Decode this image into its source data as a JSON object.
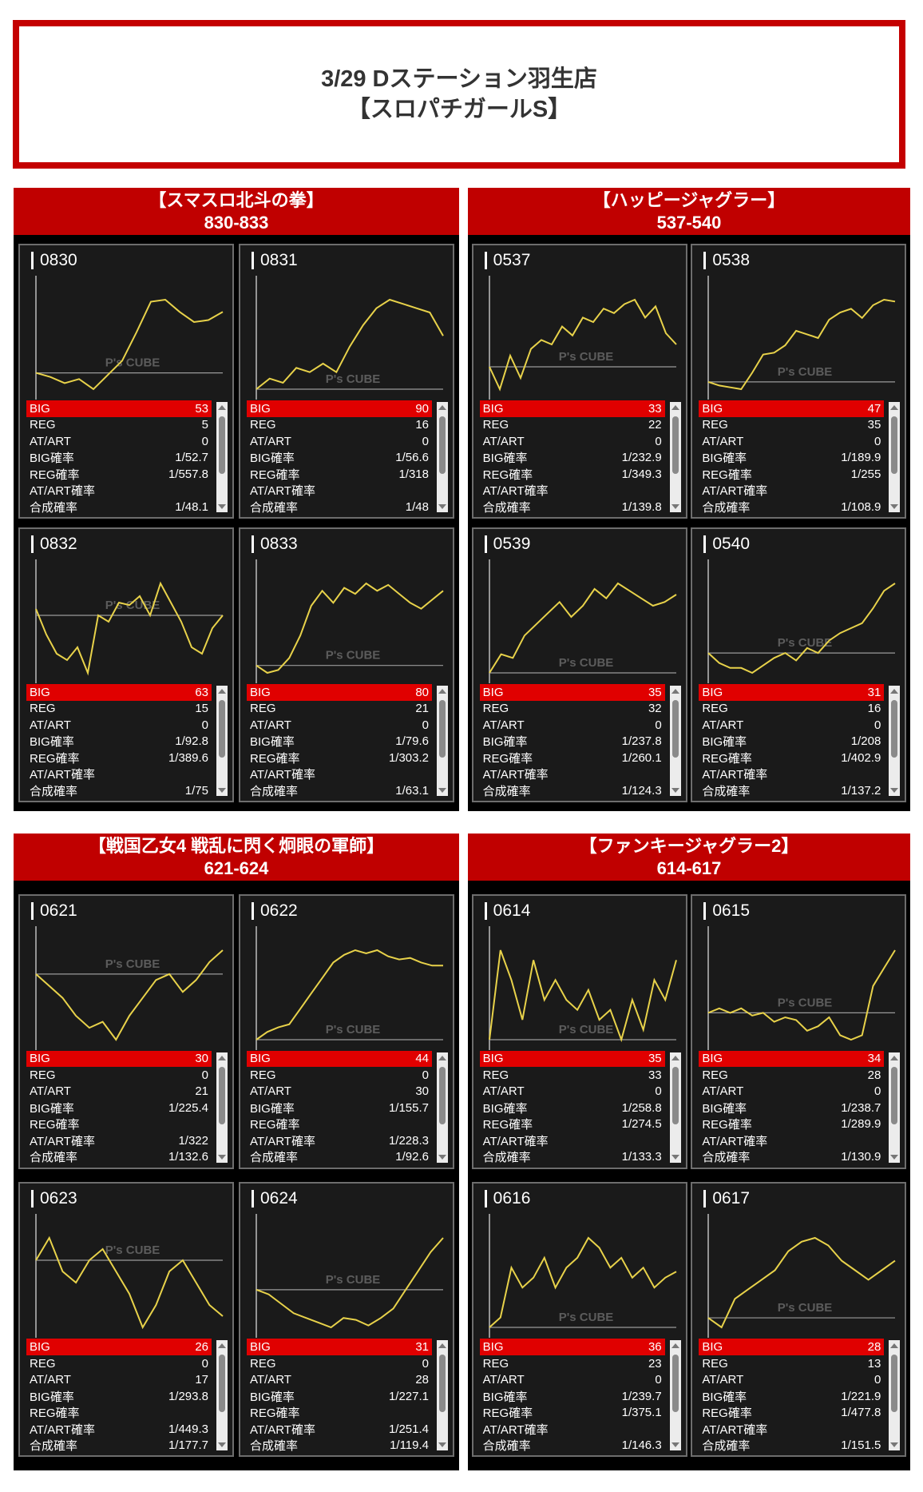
{
  "header": {
    "line1": "3/29 Dステーション羽生店",
    "line2": "【スロパチガールS】"
  },
  "stat_labels": [
    "BIG",
    "REG",
    "AT/ART",
    "BIG確率",
    "REG確率",
    "AT/ART確率",
    "合成確率"
  ],
  "watermark": "P's CUBE",
  "colors": {
    "accent": "#c00000",
    "big_row": "#e00000",
    "line": "#e8d24a"
  },
  "groups": [
    {
      "title": "【スマスロ北斗の拳】",
      "range": "830-833",
      "machines": [
        {
          "num": "0830",
          "stats": [
            "53",
            "5",
            "0",
            "1/52.7",
            "1/557.8",
            "",
            "1/48.1"
          ]
        },
        {
          "num": "0831",
          "stats": [
            "90",
            "16",
            "0",
            "1/56.6",
            "1/318",
            "",
            "1/48"
          ]
        },
        {
          "num": "0832",
          "stats": [
            "63",
            "15",
            "0",
            "1/92.8",
            "1/389.6",
            "",
            "1/75"
          ]
        },
        {
          "num": "0833",
          "stats": [
            "80",
            "21",
            "0",
            "1/79.6",
            "1/303.2",
            "",
            "1/63.1"
          ]
        }
      ]
    },
    {
      "title": "【ハッピージャグラー】",
      "range": "537-540",
      "machines": [
        {
          "num": "0537",
          "stats": [
            "33",
            "22",
            "0",
            "1/232.9",
            "1/349.3",
            "",
            "1/139.8"
          ]
        },
        {
          "num": "0538",
          "stats": [
            "47",
            "35",
            "0",
            "1/189.9",
            "1/255",
            "",
            "1/108.9"
          ]
        },
        {
          "num": "0539",
          "stats": [
            "35",
            "32",
            "0",
            "1/237.8",
            "1/260.1",
            "",
            "1/124.3"
          ]
        },
        {
          "num": "0540",
          "stats": [
            "31",
            "16",
            "0",
            "1/208",
            "1/402.9",
            "",
            "1/137.2"
          ]
        }
      ]
    },
    {
      "title": "【戦国乙女4 戦乱に閃く炯眼の軍師】",
      "range": "621-624",
      "machines": [
        {
          "num": "0621",
          "stats": [
            "30",
            "0",
            "21",
            "1/225.4",
            "",
            "1/322",
            "1/132.6"
          ]
        },
        {
          "num": "0622",
          "stats": [
            "44",
            "0",
            "30",
            "1/155.7",
            "",
            "1/228.3",
            "1/92.6"
          ]
        },
        {
          "num": "0623",
          "stats": [
            "26",
            "0",
            "17",
            "1/293.8",
            "",
            "1/449.3",
            "1/177.7"
          ]
        },
        {
          "num": "0624",
          "stats": [
            "31",
            "0",
            "28",
            "1/227.1",
            "",
            "1/251.4",
            "1/119.4"
          ]
        }
      ]
    },
    {
      "title": "【ファンキージャグラー2】",
      "range": "614-617",
      "machines": [
        {
          "num": "0614",
          "stats": [
            "35",
            "33",
            "0",
            "1/258.8",
            "1/274.5",
            "",
            "1/133.3"
          ]
        },
        {
          "num": "0615",
          "stats": [
            "34",
            "28",
            "0",
            "1/238.7",
            "1/289.9",
            "",
            "1/130.9"
          ]
        },
        {
          "num": "0616",
          "stats": [
            "36",
            "23",
            "0",
            "1/239.7",
            "1/375.1",
            "",
            "1/146.3"
          ]
        },
        {
          "num": "0617",
          "stats": [
            "28",
            "13",
            "0",
            "1/221.9",
            "1/477.8",
            "",
            "1/151.5"
          ]
        }
      ]
    }
  ],
  "chart_data": [
    {
      "type": "line",
      "machine": "0830",
      "values": [
        0,
        -2,
        -5,
        -3,
        -8,
        -1,
        6,
        20,
        35,
        36,
        30,
        25,
        26,
        30
      ]
    },
    {
      "type": "line",
      "machine": "0831",
      "values": [
        0,
        5,
        3,
        10,
        8,
        12,
        8,
        20,
        30,
        38,
        42,
        40,
        38,
        36,
        25
      ]
    },
    {
      "type": "line",
      "machine": "0832",
      "values": [
        5,
        -15,
        -30,
        -35,
        -25,
        -45,
        0,
        -5,
        10,
        8,
        15,
        0,
        25,
        10,
        -5,
        -25,
        -30,
        -10,
        0
      ]
    },
    {
      "type": "line",
      "machine": "0833",
      "values": [
        0,
        -5,
        -3,
        5,
        20,
        40,
        50,
        42,
        52,
        48,
        55,
        50,
        54,
        48,
        42,
        38,
        44,
        50
      ]
    },
    {
      "type": "line",
      "machine": "0537",
      "values": [
        0,
        -10,
        5,
        -5,
        8,
        12,
        10,
        18,
        14,
        22,
        20,
        26,
        24,
        28,
        30,
        22,
        27,
        15,
        10
      ]
    },
    {
      "type": "line",
      "machine": "0538",
      "values": [
        0,
        -2,
        -3,
        -4,
        5,
        15,
        16,
        20,
        28,
        26,
        24,
        34,
        38,
        40,
        35,
        42,
        45,
        44
      ]
    },
    {
      "type": "line",
      "machine": "0539",
      "values": [
        0,
        10,
        8,
        20,
        26,
        32,
        38,
        30,
        36,
        45,
        40,
        48,
        44,
        40,
        36,
        38,
        42
      ]
    },
    {
      "type": "line",
      "machine": "0540",
      "values": [
        0,
        -4,
        -6,
        -6,
        -8,
        -5,
        -2,
        0,
        -3,
        2,
        0,
        5,
        8,
        10,
        12,
        18,
        25,
        28
      ]
    },
    {
      "type": "line",
      "machine": "0621",
      "values": [
        0,
        -10,
        -20,
        -35,
        -45,
        -40,
        -55,
        -35,
        -20,
        -5,
        0,
        -15,
        -5,
        10,
        20
      ]
    },
    {
      "type": "line",
      "machine": "0622",
      "values": [
        0,
        5,
        8,
        10,
        20,
        30,
        40,
        50,
        55,
        58,
        56,
        58,
        54,
        52,
        53,
        50,
        48,
        48
      ]
    },
    {
      "type": "line",
      "machine": "0623",
      "values": [
        0,
        10,
        -5,
        -10,
        0,
        5,
        -5,
        -15,
        -30,
        -20,
        -5,
        0,
        -10,
        -20,
        -25
      ]
    },
    {
      "type": "line",
      "machine": "0624",
      "values": [
        0,
        -5,
        -15,
        -25,
        -30,
        -35,
        -40,
        -30,
        -32,
        -38,
        -30,
        -20,
        0,
        20,
        40,
        55
      ]
    },
    {
      "type": "line",
      "machine": "0614",
      "values": [
        0,
        45,
        30,
        10,
        40,
        20,
        30,
        20,
        15,
        25,
        10,
        15,
        0,
        20,
        5,
        30,
        20,
        40
      ]
    },
    {
      "type": "line",
      "machine": "0615",
      "values": [
        0,
        5,
        0,
        5,
        -3,
        0,
        -10,
        -5,
        -8,
        -20,
        -15,
        -5,
        -25,
        -30,
        -25,
        30,
        50,
        70
      ]
    },
    {
      "type": "line",
      "machine": "0616",
      "values": [
        0,
        5,
        30,
        20,
        25,
        35,
        20,
        30,
        35,
        45,
        40,
        30,
        35,
        25,
        30,
        20,
        25,
        28
      ]
    },
    {
      "type": "line",
      "machine": "0617",
      "values": [
        0,
        -5,
        10,
        15,
        20,
        25,
        35,
        40,
        42,
        38,
        30,
        25,
        20,
        25,
        30
      ]
    }
  ]
}
